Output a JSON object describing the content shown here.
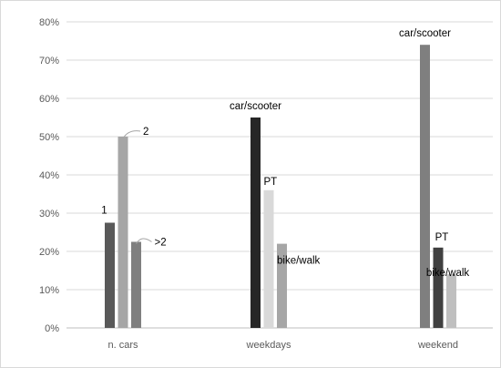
{
  "chart_data": {
    "type": "bar",
    "title": "",
    "xlabel": "",
    "ylabel": "",
    "ylim": [
      0,
      80
    ],
    "ytick_step": 10,
    "ytick_labels": [
      "0%",
      "10%",
      "20%",
      "30%",
      "40%",
      "50%",
      "60%",
      "70%",
      "80%"
    ],
    "grid": true,
    "legend": "none",
    "categories": [
      "n. cars",
      "weekdays",
      "weekend"
    ],
    "groups": [
      {
        "category": "n. cars",
        "bars": [
          {
            "label": "1",
            "value": 27.5,
            "color": "#595959"
          },
          {
            "label": "2",
            "value": 50,
            "color": "#a6a6a6"
          },
          {
            "label": ">2",
            "value": 22.5,
            "color": "#7f7f7f"
          }
        ]
      },
      {
        "category": "weekdays",
        "bars": [
          {
            "label": "car/scooter",
            "value": 55,
            "color": "#262626"
          },
          {
            "label": "PT",
            "value": 36,
            "color": "#d9d9d9"
          },
          {
            "label": "bike/walk",
            "value": 22,
            "color": "#a6a6a6"
          }
        ]
      },
      {
        "category": "weekend",
        "bars": [
          {
            "label": "car/scooter",
            "value": 74,
            "color": "#7f7f7f"
          },
          {
            "label": "PT",
            "value": 21,
            "color": "#404040"
          },
          {
            "label": "bike/walk",
            "value": 14,
            "color": "#bfbfbf"
          }
        ]
      }
    ]
  }
}
